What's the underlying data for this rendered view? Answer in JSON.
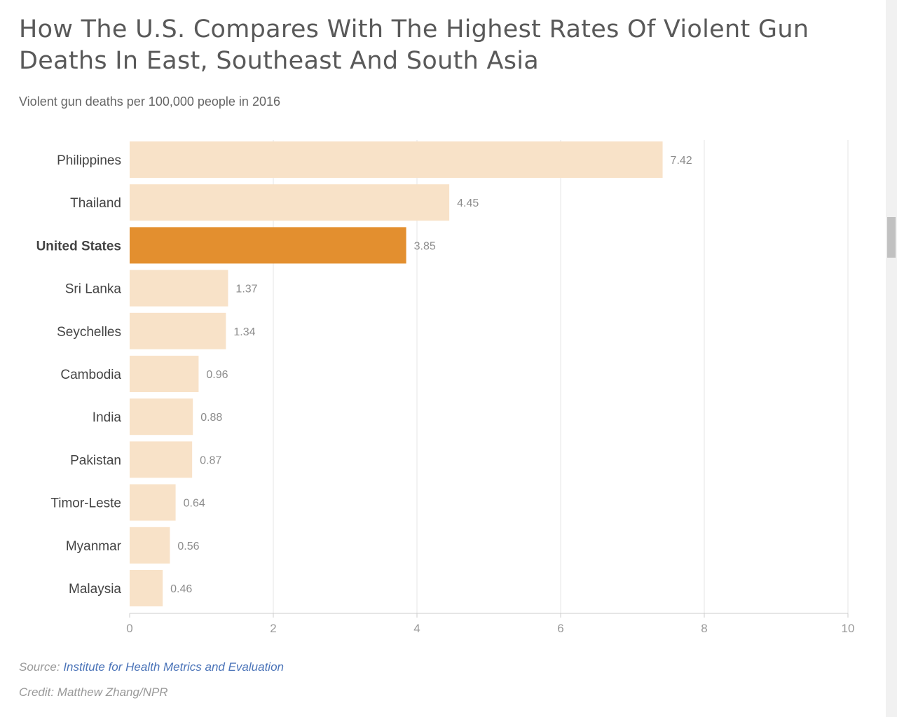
{
  "title": "How The U.S. Compares With The Highest Rates Of Violent Gun Deaths In East, Southeast And South Asia",
  "subtitle": "Violent gun deaths per 100,000 people in 2016",
  "source_label": "Source:",
  "source_link": "Institute for Health Metrics and Evaluation",
  "credit": "Credit: Matthew Zhang/NPR",
  "colors": {
    "bar": "#f8e2c8",
    "highlight": "#e38f2f",
    "grid": "#e6e6e6",
    "axis_text": "#999999",
    "value_text": "#8c8c8c",
    "label_text": "#444444"
  },
  "chart_data": {
    "type": "bar",
    "orientation": "horizontal",
    "categories": [
      "Philippines",
      "Thailand",
      "United States",
      "Sri Lanka",
      "Seychelles",
      "Cambodia",
      "India",
      "Pakistan",
      "Timor-Leste",
      "Myanmar",
      "Malaysia"
    ],
    "values": [
      7.42,
      4.45,
      3.85,
      1.37,
      1.34,
      0.96,
      0.88,
      0.87,
      0.64,
      0.56,
      0.46
    ],
    "value_labels": [
      "7.42",
      "4.45",
      "3.85",
      "1.37",
      "1.34",
      "0.96",
      "0.88",
      "0.87",
      "0.64",
      "0.56",
      "0.46"
    ],
    "highlight": "United States",
    "xlim": [
      0,
      10
    ],
    "xticks": [
      "0",
      "2",
      "4",
      "6",
      "8",
      "10"
    ],
    "grid": true
  }
}
